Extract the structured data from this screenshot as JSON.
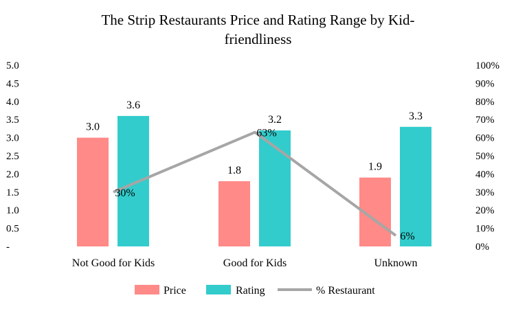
{
  "chart_data": {
    "type": "bar",
    "title_lines": [
      "The Strip Restaurants Price and Rating Range by Kid-",
      "friendliness"
    ],
    "categories": [
      "Not Good for Kids",
      "Good for Kids",
      "Unknown"
    ],
    "series": [
      {
        "name": "Price",
        "type": "bar",
        "axis": "left",
        "color": "#FF8A87",
        "values": [
          3.0,
          1.8,
          1.9
        ],
        "labels": [
          "3.0",
          "1.8",
          "1.9"
        ]
      },
      {
        "name": "Rating",
        "type": "bar",
        "axis": "left",
        "color": "#33CCCC",
        "values": [
          3.6,
          3.2,
          3.3
        ],
        "labels": [
          "3.6",
          "3.2",
          "3.3"
        ]
      },
      {
        "name": "% Restaurant",
        "type": "line",
        "axis": "right",
        "color": "#A6A6A6",
        "values": [
          30,
          63,
          6
        ],
        "labels": [
          "30%",
          "63%",
          "6%"
        ]
      }
    ],
    "y_left": {
      "min": 0,
      "max": 5,
      "ticks": [
        "-",
        "0.5",
        "1.0",
        "1.5",
        "2.0",
        "2.5",
        "3.0",
        "3.5",
        "4.0",
        "4.5",
        "5.0"
      ]
    },
    "y_right": {
      "min": 0,
      "max": 100,
      "ticks": [
        "0%",
        "10%",
        "20%",
        "30%",
        "40%",
        "50%",
        "60%",
        "70%",
        "80%",
        "90%",
        "100%"
      ]
    },
    "legend": {
      "position": "bottom",
      "items": [
        "Price",
        "Rating",
        "% Restaurant"
      ]
    },
    "grid": false
  }
}
